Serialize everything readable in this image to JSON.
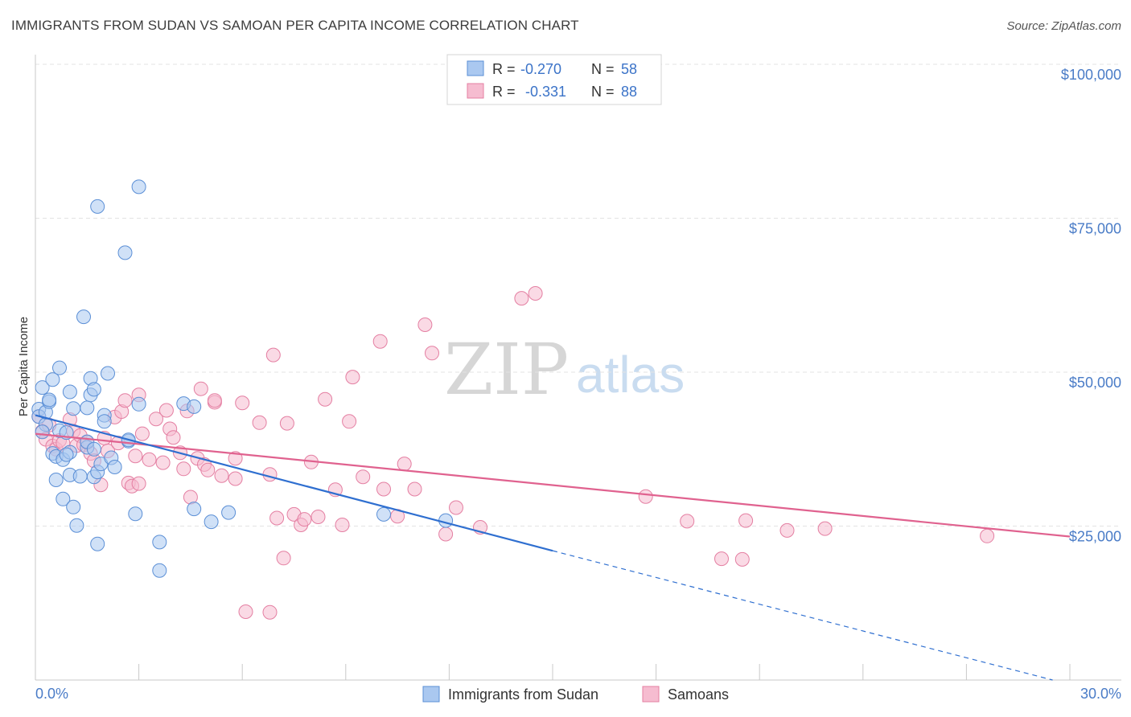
{
  "header": {
    "title": "IMMIGRANTS FROM SUDAN VS SAMOAN PER CAPITA INCOME CORRELATION CHART",
    "source": "Source: ZipAtlas.com"
  },
  "watermark": {
    "zip": "ZIP",
    "atlas": "atlas"
  },
  "colors": {
    "blue_fill": "#aac8f0",
    "blue_stroke": "#5b8fd6",
    "blue_line": "#2f6fd0",
    "pink_fill": "#f6bcd0",
    "pink_stroke": "#e47fa2",
    "pink_line": "#e0628f",
    "tick_text": "#4a7cc7"
  },
  "legend_top": {
    "rows": [
      {
        "r_label": "R =",
        "r_value": "-0.270",
        "n_label": "N =",
        "n_value": "58",
        "color": "blue"
      },
      {
        "r_label": "R =",
        "r_value": "-0.331",
        "n_label": "N =",
        "n_value": "88",
        "color": "pink"
      }
    ]
  },
  "legend_bottom": [
    {
      "label": "Immigrants from Sudan",
      "color": "blue"
    },
    {
      "label": "Samoans",
      "color": "pink"
    }
  ],
  "chart_data": {
    "type": "scatter",
    "title": "IMMIGRANTS FROM SUDAN VS SAMOAN PER CAPITA INCOME CORRELATION CHART",
    "xlabel": "",
    "ylabel": "Per Capita Income",
    "xlim": [
      0,
      30
    ],
    "ylim": [
      0,
      105000
    ],
    "x_tick_labels": [
      "0.0%",
      "30.0%"
    ],
    "y_ticks": [
      25000,
      50000,
      75000,
      100000
    ],
    "y_tick_labels": [
      "$25,000",
      "$50,000",
      "$75,000",
      "$100,000"
    ],
    "grid": true,
    "legend_position": "top-center",
    "series": [
      {
        "name": "Immigrants from Sudan",
        "r": -0.27,
        "n": 58,
        "trend": {
          "x0": 0.0,
          "y0": 43000,
          "x1": 15.0,
          "y1": 21000,
          "dashed_to_x": 29.5,
          "dashed_to_y": 0
        },
        "points": [
          [
            0.1,
            44000
          ],
          [
            0.1,
            42800
          ],
          [
            0.2,
            47500
          ],
          [
            0.3,
            41500
          ],
          [
            0.3,
            43500
          ],
          [
            0.4,
            45200
          ],
          [
            0.4,
            45500
          ],
          [
            0.5,
            36800
          ],
          [
            0.5,
            48800
          ],
          [
            0.6,
            32500
          ],
          [
            0.6,
            36300
          ],
          [
            0.7,
            50700
          ],
          [
            0.7,
            40500
          ],
          [
            0.8,
            35800
          ],
          [
            0.8,
            29400
          ],
          [
            0.9,
            40200
          ],
          [
            1.0,
            33300
          ],
          [
            1.0,
            37000
          ],
          [
            1.0,
            46800
          ],
          [
            1.1,
            28100
          ],
          [
            1.1,
            44100
          ],
          [
            1.2,
            25100
          ],
          [
            1.3,
            33100
          ],
          [
            1.4,
            59000
          ],
          [
            1.5,
            44200
          ],
          [
            1.5,
            37800
          ],
          [
            1.5,
            38700
          ],
          [
            1.6,
            46300
          ],
          [
            1.6,
            49000
          ],
          [
            1.7,
            47200
          ],
          [
            1.7,
            37500
          ],
          [
            1.7,
            33000
          ],
          [
            1.8,
            33800
          ],
          [
            1.8,
            76900
          ],
          [
            1.8,
            22100
          ],
          [
            1.9,
            35100
          ],
          [
            2.0,
            43000
          ],
          [
            2.0,
            42000
          ],
          [
            2.1,
            49800
          ],
          [
            2.2,
            36100
          ],
          [
            2.3,
            34600
          ],
          [
            2.6,
            69400
          ],
          [
            2.7,
            38800
          ],
          [
            2.7,
            39000
          ],
          [
            2.9,
            27000
          ],
          [
            3.0,
            80100
          ],
          [
            3.0,
            44800
          ],
          [
            3.6,
            22400
          ],
          [
            3.6,
            17800
          ],
          [
            4.3,
            44900
          ],
          [
            4.6,
            44400
          ],
          [
            4.6,
            27800
          ],
          [
            5.1,
            25700
          ],
          [
            5.6,
            27200
          ],
          [
            10.1,
            26900
          ],
          [
            11.9,
            25900
          ],
          [
            0.2,
            40300
          ],
          [
            0.9,
            36600
          ]
        ]
      },
      {
        "name": "Samoans",
        "r": -0.331,
        "n": 88,
        "trend": {
          "x0": 0.0,
          "y0": 40000,
          "x1": 30.0,
          "y1": 23300
        },
        "points": [
          [
            0.1,
            42800
          ],
          [
            0.2,
            40400
          ],
          [
            0.3,
            39100
          ],
          [
            0.4,
            41400
          ],
          [
            0.5,
            38000
          ],
          [
            0.6,
            37500
          ],
          [
            0.7,
            38900
          ],
          [
            0.8,
            38500
          ],
          [
            1.0,
            42300
          ],
          [
            1.1,
            40400
          ],
          [
            1.2,
            38100
          ],
          [
            1.3,
            39700
          ],
          [
            1.4,
            38200
          ],
          [
            1.5,
            38600
          ],
          [
            1.6,
            36800
          ],
          [
            1.7,
            35600
          ],
          [
            1.9,
            31700
          ],
          [
            2.0,
            39300
          ],
          [
            2.1,
            37200
          ],
          [
            2.3,
            42700
          ],
          [
            2.4,
            38500
          ],
          [
            2.5,
            43600
          ],
          [
            2.6,
            45400
          ],
          [
            2.7,
            32000
          ],
          [
            2.8,
            31500
          ],
          [
            2.9,
            36400
          ],
          [
            3.0,
            31900
          ],
          [
            3.0,
            46300
          ],
          [
            3.1,
            40000
          ],
          [
            3.3,
            35800
          ],
          [
            3.5,
            42400
          ],
          [
            3.7,
            35300
          ],
          [
            3.8,
            43800
          ],
          [
            3.9,
            40800
          ],
          [
            4.0,
            39400
          ],
          [
            4.2,
            36900
          ],
          [
            4.3,
            34300
          ],
          [
            4.4,
            43700
          ],
          [
            4.5,
            29700
          ],
          [
            4.7,
            36000
          ],
          [
            4.8,
            47300
          ],
          [
            4.9,
            35000
          ],
          [
            5.0,
            34100
          ],
          [
            5.2,
            45100
          ],
          [
            5.2,
            45400
          ],
          [
            5.4,
            33200
          ],
          [
            5.8,
            36000
          ],
          [
            5.8,
            32700
          ],
          [
            6.0,
            45000
          ],
          [
            6.5,
            41800
          ],
          [
            6.8,
            33400
          ],
          [
            6.9,
            52800
          ],
          [
            7.0,
            26300
          ],
          [
            7.2,
            19800
          ],
          [
            7.3,
            41700
          ],
          [
            7.5,
            26900
          ],
          [
            7.7,
            25200
          ],
          [
            7.8,
            26100
          ],
          [
            8.0,
            35400
          ],
          [
            8.2,
            26500
          ],
          [
            8.4,
            45600
          ],
          [
            8.7,
            30900
          ],
          [
            8.9,
            25200
          ],
          [
            9.1,
            42000
          ],
          [
            9.2,
            49200
          ],
          [
            9.5,
            33000
          ],
          [
            10.0,
            55000
          ],
          [
            10.1,
            31000
          ],
          [
            10.5,
            26600
          ],
          [
            10.7,
            35100
          ],
          [
            11.0,
            31000
          ],
          [
            11.3,
            57700
          ],
          [
            11.5,
            53100
          ],
          [
            11.9,
            23700
          ],
          [
            12.2,
            28000
          ],
          [
            12.9,
            24800
          ],
          [
            14.1,
            62000
          ],
          [
            14.5,
            62800
          ],
          [
            17.7,
            29800
          ],
          [
            18.9,
            25800
          ],
          [
            19.9,
            19700
          ],
          [
            20.5,
            19600
          ],
          [
            20.6,
            25900
          ],
          [
            21.8,
            24300
          ],
          [
            22.9,
            24600
          ],
          [
            27.6,
            23400
          ],
          [
            6.1,
            11100
          ],
          [
            6.8,
            11000
          ]
        ]
      }
    ]
  }
}
